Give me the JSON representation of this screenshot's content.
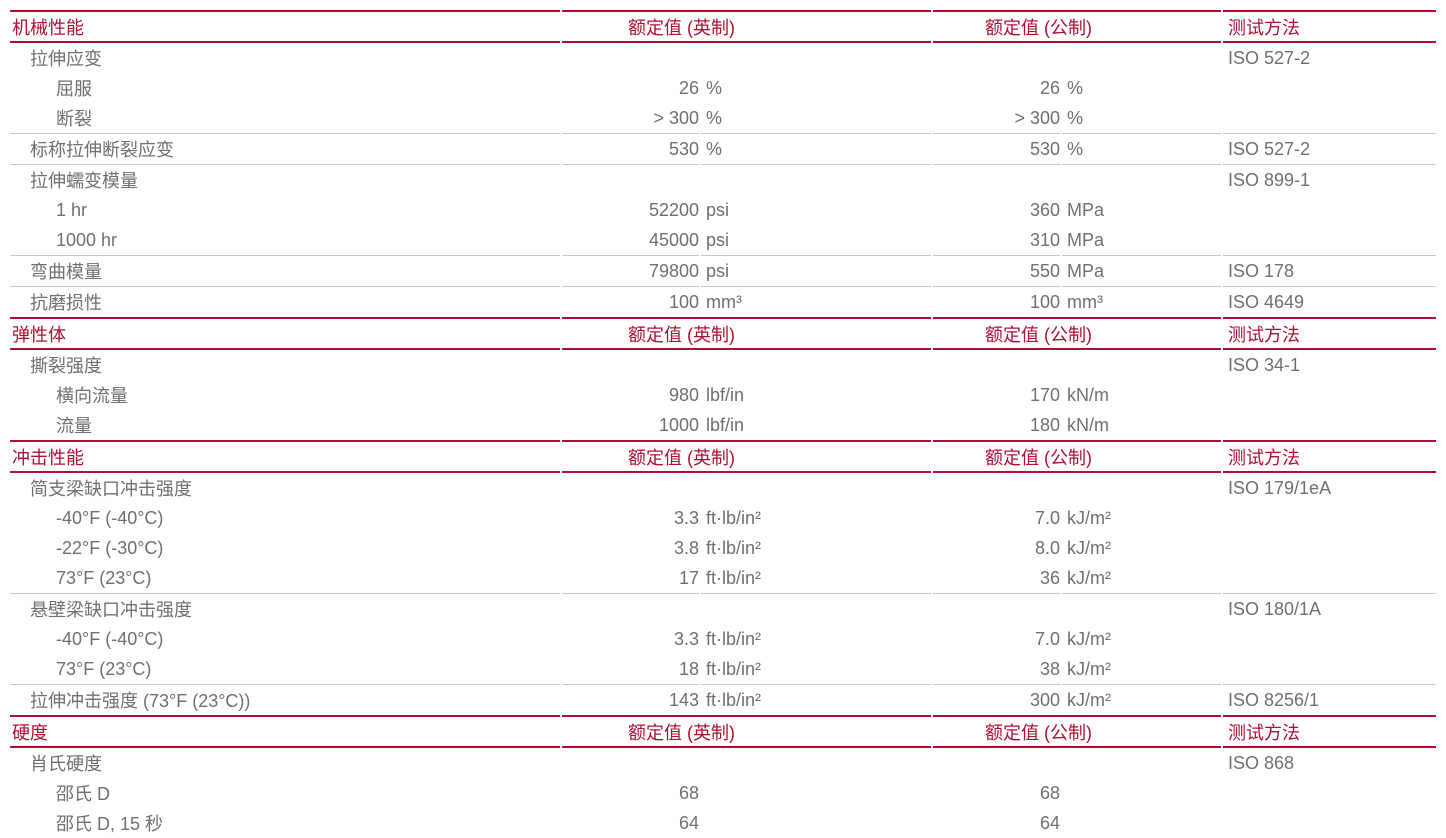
{
  "colors": {
    "accent_red": "#B00E33",
    "text_gray": "#6F6F6F",
    "separator_gray": "#C8C8C8"
  },
  "table": {
    "columns": {
      "imperial_header": "额定值 (英制)",
      "metric_header": "额定值 (公制)",
      "method_header": "测试方法"
    },
    "sections": [
      {
        "title": "机械性能",
        "rows": [
          {
            "label": "拉伸应变",
            "indent": 1,
            "method": "ISO 527-2"
          },
          {
            "label": "屈服",
            "indent": 2,
            "imp_num": "26",
            "imp_unit": "%",
            "met_num": "26",
            "met_unit": "%"
          },
          {
            "label": "断裂",
            "indent": 2,
            "imp_num": "> 300",
            "imp_unit": "%",
            "met_num": "> 300",
            "met_unit": "%"
          },
          {
            "label": "标称拉伸断裂应变",
            "indent": 1,
            "imp_num": "530",
            "imp_unit": "%",
            "met_num": "530",
            "met_unit": "%",
            "method": "ISO 527-2",
            "sep": true
          },
          {
            "label": "拉伸蠕变模量",
            "indent": 1,
            "method": "ISO 899-1",
            "sep": true
          },
          {
            "label": "1 hr",
            "indent": 2,
            "imp_num": "52200",
            "imp_unit": "psi",
            "met_num": "360",
            "met_unit": "MPa"
          },
          {
            "label": "1000 hr",
            "indent": 2,
            "imp_num": "45000",
            "imp_unit": "psi",
            "met_num": "310",
            "met_unit": "MPa"
          },
          {
            "label": "弯曲模量",
            "indent": 1,
            "imp_num": "79800",
            "imp_unit": "psi",
            "met_num": "550",
            "met_unit": "MPa",
            "method": "ISO 178",
            "sep": true
          },
          {
            "label": "抗磨损性",
            "indent": 1,
            "imp_num": "100",
            "imp_unit": "mm³",
            "met_num": "100",
            "met_unit": "mm³",
            "method": "ISO 4649",
            "sep": true
          }
        ]
      },
      {
        "title": "弹性体",
        "rows": [
          {
            "label": "撕裂强度",
            "indent": 1,
            "method": "ISO 34-1"
          },
          {
            "label": "横向流量",
            "indent": 2,
            "imp_num": "980",
            "imp_unit": "lbf/in",
            "met_num": "170",
            "met_unit": "kN/m"
          },
          {
            "label": "流量",
            "indent": 2,
            "imp_num": "1000",
            "imp_unit": "lbf/in",
            "met_num": "180",
            "met_unit": "kN/m"
          }
        ]
      },
      {
        "title": "冲击性能",
        "rows": [
          {
            "label": "简支梁缺口冲击强度",
            "indent": 1,
            "method": "ISO 179/1eA"
          },
          {
            "label": "-40°F (-40°C)",
            "indent": 2,
            "imp_num": "3.3",
            "imp_unit": "ft·lb/in²",
            "met_num": "7.0",
            "met_unit": "kJ/m²"
          },
          {
            "label": "-22°F (-30°C)",
            "indent": 2,
            "imp_num": "3.8",
            "imp_unit": "ft·lb/in²",
            "met_num": "8.0",
            "met_unit": "kJ/m²"
          },
          {
            "label": "73°F (23°C)",
            "indent": 2,
            "imp_num": "17",
            "imp_unit": "ft·lb/in²",
            "met_num": "36",
            "met_unit": "kJ/m²"
          },
          {
            "label": "悬壁梁缺口冲击强度",
            "indent": 1,
            "method": "ISO 180/1A",
            "sep": true
          },
          {
            "label": "-40°F (-40°C)",
            "indent": 2,
            "imp_num": "3.3",
            "imp_unit": "ft·lb/in²",
            "met_num": "7.0",
            "met_unit": "kJ/m²"
          },
          {
            "label": "73°F (23°C)",
            "indent": 2,
            "imp_num": "18",
            "imp_unit": "ft·lb/in²",
            "met_num": "38",
            "met_unit": "kJ/m²"
          },
          {
            "label": "拉伸冲击强度 (73°F (23°C))",
            "indent": 1,
            "imp_num": "143",
            "imp_unit": "ft·lb/in²",
            "met_num": "300",
            "met_unit": "kJ/m²",
            "method": "ISO 8256/1",
            "sep": true
          }
        ]
      },
      {
        "title": "硬度",
        "rows": [
          {
            "label": "肖氏硬度",
            "indent": 1,
            "method": "ISO 868"
          },
          {
            "label": "邵氏 D",
            "indent": 2,
            "imp_num": "68",
            "imp_unit": "",
            "met_num": "68",
            "met_unit": ""
          },
          {
            "label": "邵氏 D, 15 秒",
            "indent": 2,
            "imp_num": "64",
            "imp_unit": "",
            "met_num": "64",
            "met_unit": ""
          }
        ]
      }
    ]
  }
}
